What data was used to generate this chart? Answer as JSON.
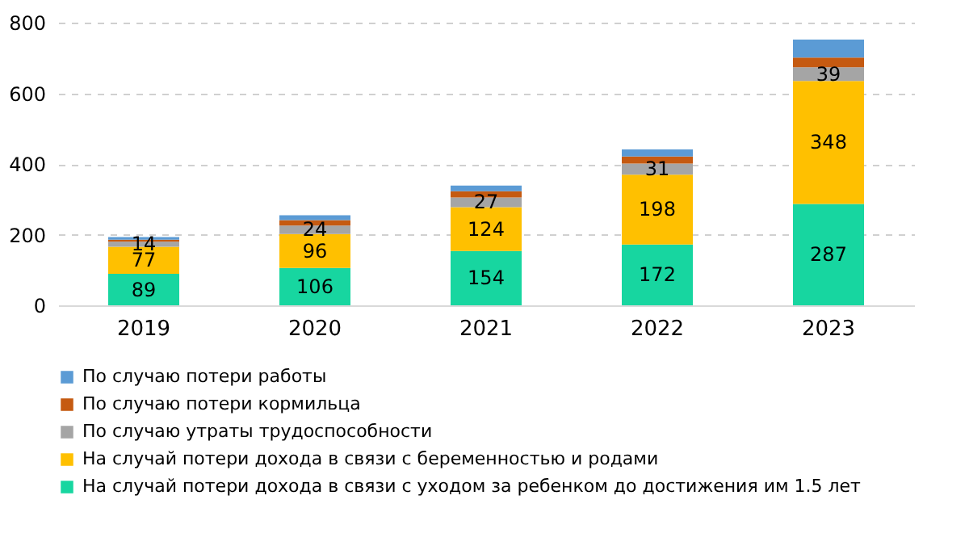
{
  "chart_data": {
    "type": "bar",
    "stacked": true,
    "categories": [
      "2019",
      "2020",
      "2021",
      "2022",
      "2023"
    ],
    "series": [
      {
        "name": "На случай потери дохода в связи с уходом за ребенком до достижения им 1.5 лет",
        "color": "#17d6a0",
        "values": [
          89,
          106,
          154,
          172,
          287
        ],
        "value_labels": [
          "89",
          "106",
          "154",
          "172",
          "287"
        ]
      },
      {
        "name": "На случай потери дохода в связи с беременностью и родами",
        "color": "#ffc000",
        "values": [
          77,
          96,
          124,
          198,
          348
        ],
        "value_labels": [
          "77",
          "96",
          "124",
          "198",
          "348"
        ]
      },
      {
        "name": "По случаю утраты трудоспособности",
        "color": "#a5a5a5",
        "values": [
          14,
          24,
          27,
          31,
          39
        ],
        "value_labels": [
          "14",
          "24",
          "27",
          "31",
          "39"
        ]
      },
      {
        "name": "По случаю потери кормильца",
        "color": "#c55a11",
        "values": [
          6,
          15,
          18,
          20,
          27
        ]
      },
      {
        "name": "По случаю потери работы",
        "color": "#5b9bd5",
        "values": [
          7,
          14,
          16,
          20,
          51
        ]
      }
    ],
    "ylim": [
      0,
      800
    ],
    "yticks": [
      0,
      200,
      400,
      600,
      800
    ],
    "grid": "y",
    "legend": "bottom"
  }
}
